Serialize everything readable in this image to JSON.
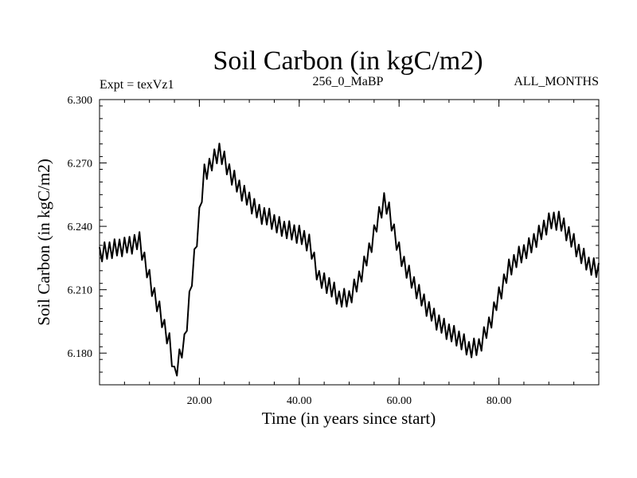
{
  "chart_data": {
    "type": "line",
    "title": "Soil Carbon (in kgC/m2)",
    "subtitle_left": "Expt = texVz1",
    "subtitle_center": "256_0_MaBP",
    "subtitle_right": "ALL_MONTHS",
    "xlabel": "Time (in years since start)",
    "ylabel": "Soil Carbon (in kgC/m2)",
    "xlim": [
      0,
      100
    ],
    "ylim": [
      6.165,
      6.3
    ],
    "x_ticks": [
      20,
      40,
      60,
      80
    ],
    "x_tick_labels": [
      "20.00",
      "40.00",
      "60.00",
      "80.00"
    ],
    "y_ticks": [
      6.18,
      6.21,
      6.24,
      6.27,
      6.3
    ],
    "y_tick_labels": [
      "6.180",
      "6.210",
      "6.240",
      "6.270",
      "6.300"
    ],
    "series": [
      {
        "name": "Soil Carbon",
        "oscillation_amplitude": 0.0045,
        "samples_per_year": 2,
        "x": [
          0,
          2,
          4,
          6,
          8,
          10,
          12,
          14,
          15,
          17,
          19,
          21,
          23,
          24,
          26,
          28,
          30,
          32,
          34,
          36,
          38,
          40,
          42,
          44,
          46,
          48,
          50,
          52,
          54,
          56,
          57,
          58,
          60,
          62,
          64,
          66,
          68,
          70,
          72,
          74,
          76,
          78,
          80,
          82,
          84,
          86,
          88,
          90,
          92,
          94,
          96,
          98,
          100
        ],
        "y": [
          6.227,
          6.229,
          6.23,
          6.231,
          6.233,
          6.215,
          6.2,
          6.185,
          6.17,
          6.185,
          6.225,
          6.265,
          6.272,
          6.276,
          6.266,
          6.258,
          6.252,
          6.246,
          6.244,
          6.24,
          6.238,
          6.236,
          6.232,
          6.215,
          6.212,
          6.206,
          6.206,
          6.215,
          6.228,
          6.245,
          6.252,
          6.247,
          6.228,
          6.217,
          6.208,
          6.2,
          6.194,
          6.19,
          6.187,
          6.182,
          6.183,
          6.193,
          6.207,
          6.22,
          6.226,
          6.23,
          6.236,
          6.242,
          6.243,
          6.236,
          6.228,
          6.222,
          6.219
        ]
      }
    ]
  }
}
